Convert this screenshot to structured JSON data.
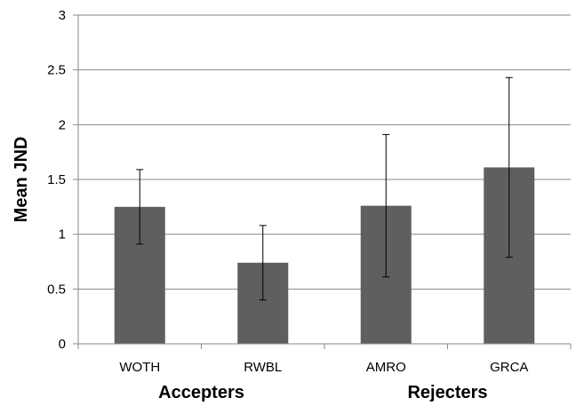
{
  "chart_data": {
    "type": "bar",
    "categories": [
      "WOTH",
      "RWBL",
      "AMRO",
      "GRCA"
    ],
    "values": [
      1.25,
      0.74,
      1.26,
      1.61
    ],
    "error_bars": {
      "lower": [
        0.91,
        0.4,
        0.61,
        0.79
      ],
      "upper": [
        1.59,
        1.08,
        1.91,
        2.43
      ]
    },
    "group_labels": [
      "Accepters",
      "Rejecters"
    ],
    "groups": [
      {
        "label_index": 0,
        "categories": [
          0,
          1
        ]
      },
      {
        "label_index": 1,
        "categories": [
          2,
          3
        ]
      }
    ],
    "ylabel": "Mean JND",
    "xlabel": "",
    "title": "",
    "ylim": [
      0,
      3
    ],
    "yticks": [
      "0",
      "0.5",
      "1",
      "1.5",
      "2",
      "2.5",
      "3"
    ],
    "grid": true,
    "legend": "none",
    "colors": {
      "bar": "#5f5f5f",
      "grid": "#8a8a8a",
      "axis": "#8a8a8a",
      "error_bar": "#000000"
    }
  }
}
